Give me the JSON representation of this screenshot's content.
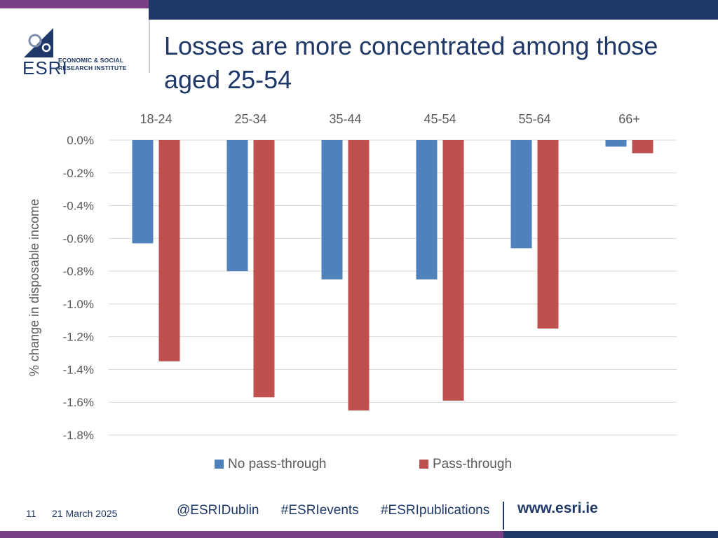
{
  "brand": {
    "logo_text": "ESRI",
    "org_name": "ECONOMIC & SOCIAL\nRESEARCH INSTITUTE",
    "navy": "#1f3868",
    "purple": "#7b3f86"
  },
  "slide": {
    "title": "Losses are more concentrated among those aged 25-54"
  },
  "chart_data": {
    "type": "bar",
    "categories": [
      "18-24",
      "25-34",
      "35-44",
      "45-54",
      "55-64",
      "66+"
    ],
    "series": [
      {
        "name": "No pass-through",
        "color": "#4f81bd",
        "values": [
          -0.63,
          -0.8,
          -0.85,
          -0.85,
          -0.66,
          -0.04
        ]
      },
      {
        "name": "Pass-through",
        "color": "#c0504d",
        "values": [
          -1.35,
          -1.57,
          -1.65,
          -1.59,
          -1.15,
          -0.08
        ]
      }
    ],
    "ylabel": "% change in disposable income",
    "ylim": [
      -1.8,
      0
    ],
    "yticks": [
      "0.0%",
      "-0.2%",
      "-0.4%",
      "-0.6%",
      "-0.8%",
      "-1.0%",
      "-1.2%",
      "-1.4%",
      "-1.6%",
      "-1.8%"
    ],
    "grid": true,
    "legend_position": "bottom",
    "category_axis_position": "top"
  },
  "footer": {
    "page_number": "11",
    "date": "21 March 2025",
    "hashtags": [
      "@ESRIDublin",
      "#ESRIevents",
      "#ESRIpublications"
    ],
    "url": "www.esri.ie"
  }
}
